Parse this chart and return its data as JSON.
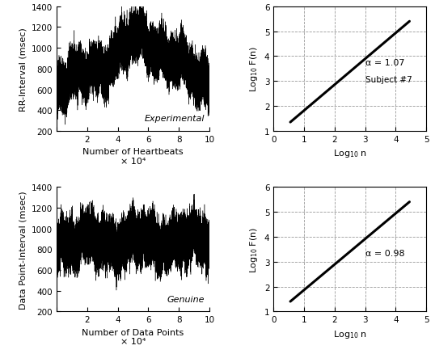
{
  "upper_left": {
    "ylabel": "RR-Interval (msec)",
    "xlabel": "Number of Heartbeats",
    "xlim": [
      0,
      100000
    ],
    "ylim": [
      200,
      1400
    ],
    "yticks": [
      200,
      400,
      600,
      800,
      1000,
      1200,
      1400
    ],
    "xticks": [
      0,
      20000,
      40000,
      60000,
      80000,
      100000
    ],
    "xtick_labels": [
      "",
      "2",
      "4",
      "6",
      "8",
      "10"
    ],
    "xlabel_suffix": "× 10⁴",
    "label": "Experimental",
    "mean_start": 680,
    "mean_mid": 1000,
    "mean_end": 850,
    "std": 130
  },
  "lower_left": {
    "ylabel": "Data Point-Interval (msec)",
    "xlabel": "Number of Data Points",
    "xlim": [
      0,
      100000
    ],
    "ylim": [
      200,
      1400
    ],
    "yticks": [
      200,
      400,
      600,
      800,
      1000,
      1200,
      1400
    ],
    "xticks": [
      0,
      20000,
      40000,
      60000,
      80000,
      100000
    ],
    "xtick_labels": [
      "",
      "2",
      "4",
      "6",
      "8",
      "10"
    ],
    "xlabel_suffix": "× 10⁴",
    "label": "Genuine",
    "mean": 880,
    "std": 130
  },
  "upper_right": {
    "ylabel": "Log$_{10}$ F(n)",
    "xlabel": "Log$_{10}$ n",
    "xlim": [
      0,
      5
    ],
    "ylim": [
      1,
      6
    ],
    "yticks": [
      1,
      2,
      3,
      4,
      5,
      6
    ],
    "xticks": [
      0,
      1,
      2,
      3,
      4,
      5
    ],
    "alpha_text": "α = 1.07",
    "subject_text": "Subject #7",
    "line_x": [
      0.55,
      4.45
    ],
    "line_y": [
      1.35,
      5.4
    ]
  },
  "lower_right": {
    "ylabel": "Log$_{10}$ F(n)",
    "xlabel": "Log$_{10}$ n",
    "xlim": [
      0,
      5
    ],
    "ylim": [
      1,
      6
    ],
    "yticks": [
      1,
      2,
      3,
      4,
      5,
      6
    ],
    "xticks": [
      0,
      1,
      2,
      3,
      4,
      5
    ],
    "alpha_text": "α = 0.98",
    "line_x": [
      0.55,
      4.45
    ],
    "line_y": [
      1.4,
      5.4
    ]
  },
  "bg_color": "#ffffff",
  "line_color": "#000000",
  "grid_color": "#999999"
}
